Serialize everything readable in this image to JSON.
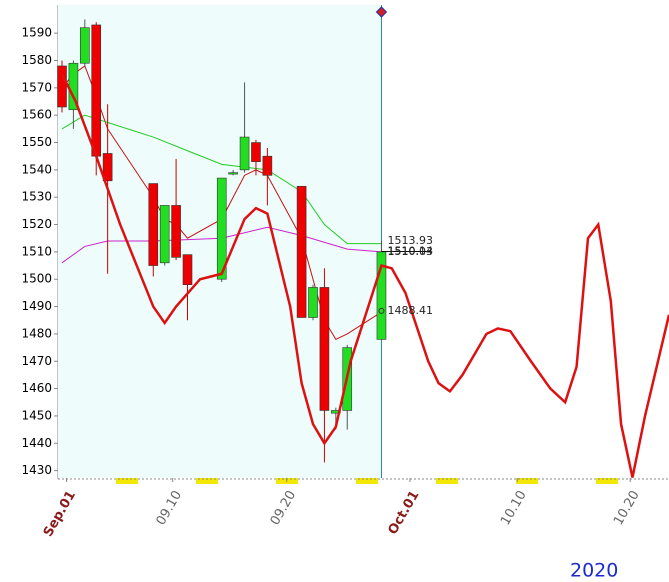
{
  "chart_data": {
    "type": "candlestick",
    "x": [
      1,
      2,
      3,
      4,
      5,
      9,
      10,
      11,
      12,
      15,
      16,
      17,
      18,
      19,
      22,
      23,
      24,
      25,
      26,
      29
    ],
    "open": [
      1578,
      1562,
      1579,
      1593,
      1546,
      1535,
      1506,
      1527,
      1509,
      1500,
      1539,
      1540,
      1550,
      1545,
      1534,
      1486,
      1497,
      1451,
      1452,
      1478
    ],
    "high": [
      1580,
      1580,
      1595,
      1594,
      1564,
      1535,
      1527,
      1544,
      1509,
      1537,
      1540,
      1572,
      1551,
      1548,
      1534,
      1498,
      1504,
      1453,
      1476,
      1514
    ],
    "low": [
      1561,
      1555,
      1578,
      1538,
      1502,
      1501,
      1505,
      1507,
      1485,
      1499,
      1538,
      1539,
      1538,
      1527,
      1486,
      1485,
      1433,
      1445,
      1445,
      1478
    ],
    "close": [
      1563,
      1579,
      1592,
      1545,
      1536,
      1505,
      1527,
      1508,
      1498,
      1537,
      1539,
      1552,
      1543,
      1538,
      1486,
      1497,
      1452,
      1452,
      1475,
      1510
    ],
    "up_color": "#22dd22",
    "down_color": "#ee0000",
    "series": [
      {
        "color": "#cc1111",
        "width": 1,
        "x": [
          1,
          2,
          3,
          4,
          5,
          9,
          10,
          11,
          12,
          15,
          16,
          17,
          18,
          19,
          22,
          23,
          24,
          25,
          26,
          29
        ],
        "values": [
          1570,
          1575,
          1578,
          1567,
          1555,
          1530,
          1522,
          1520,
          1515,
          1522,
          1530,
          1538,
          1540,
          1538,
          1515,
          1500,
          1485,
          1478,
          1480,
          1488
        ]
      },
      {
        "color": "#22cc22",
        "width": 1,
        "x": [
          1,
          3,
          9,
          12,
          15,
          19,
          22,
          24,
          26,
          29
        ],
        "values": [
          1555,
          1560,
          1552,
          1547,
          1542,
          1540,
          1532,
          1520,
          1513,
          1513
        ]
      },
      {
        "color": "#cc22cc",
        "width": 1,
        "x": [
          1,
          3,
          5,
          9,
          15,
          19,
          22,
          26,
          29
        ],
        "values": [
          1506,
          1512,
          1514,
          1514,
          1515,
          1519,
          1516,
          1511,
          1510
        ]
      },
      {
        "color": "#dd1111",
        "width": 2.5,
        "x": [
          1,
          2.2,
          4,
          6.1,
          9,
          10,
          11,
          13.1,
          15,
          17,
          18,
          19,
          21,
          22,
          23,
          24,
          25,
          26.3,
          28,
          29,
          29.9,
          31.1,
          33.1,
          34,
          35,
          36.1,
          38.2,
          39.2,
          40.3,
          42.1,
          43.8,
          45.1,
          46.1,
          47.1,
          48,
          49.1,
          50,
          51,
          52.1,
          54.2
        ],
        "values": [
          1575,
          1565,
          1545,
          1520,
          1490,
          1484,
          1490,
          1500,
          1502,
          1522,
          1526,
          1524,
          1490,
          1462,
          1447,
          1440,
          1446,
          1470,
          1492,
          1505,
          1504,
          1495,
          1470,
          1462,
          1459,
          1465,
          1480,
          1482,
          1481,
          1470,
          1460,
          1455,
          1468,
          1515,
          1520,
          1492,
          1447,
          1427.5,
          1450,
          1487
        ]
      }
    ],
    "price_labels": {
      "x": 29,
      "values": [
        1513.93,
        1510.03,
        1510.14,
        1488.41
      ]
    },
    "xlim": [
      0.65,
      54.2
    ],
    "ylim": [
      1427.3,
      1600.3
    ],
    "xticks": [
      {
        "value": 1.4,
        "label": "Sep.01"
      },
      {
        "value": 10.7,
        "label": "09.10"
      },
      {
        "value": 20.7,
        "label": "09.20"
      },
      {
        "value": 31.5,
        "label": "Oct.01"
      },
      {
        "value": 40.9,
        "label": "10.10"
      },
      {
        "value": 50.8,
        "label": "10.20"
      }
    ],
    "yticks": [
      1430,
      1440,
      1450,
      1460,
      1470,
      1480,
      1490,
      1500,
      1510,
      1520,
      1530,
      1540,
      1550,
      1560,
      1570,
      1580,
      1590
    ],
    "year_label": "2020"
  }
}
